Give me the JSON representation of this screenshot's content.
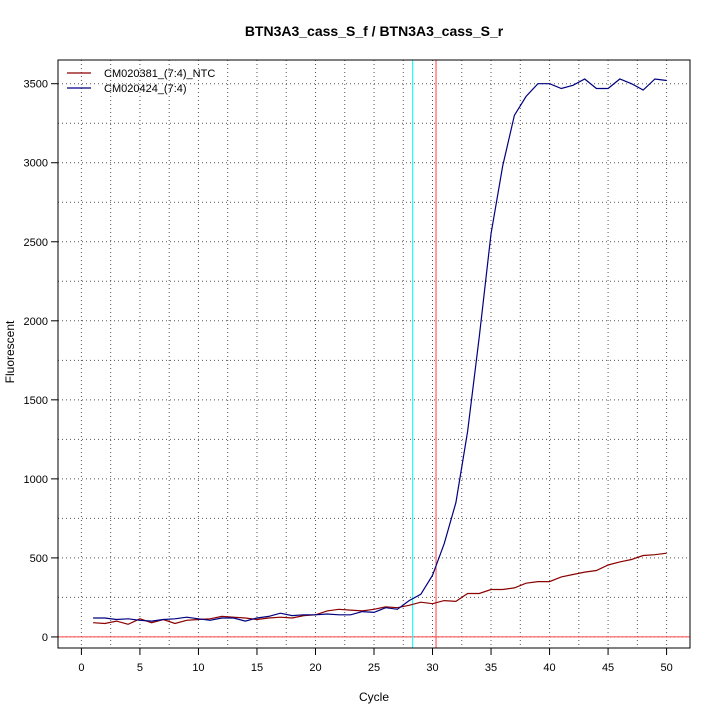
{
  "chart_data": {
    "type": "line",
    "title": "BTN3A3_cass_S_f / BTN3A3_cass_S_r",
    "xlabel": "Cycle",
    "ylabel": "Fluorescent",
    "xlim": [
      -2,
      52
    ],
    "ylim": [
      -70,
      3650
    ],
    "x_ticks": [
      0,
      5,
      10,
      15,
      20,
      25,
      30,
      35,
      40,
      45,
      50
    ],
    "y_ticks": [
      0,
      500,
      1000,
      1500,
      2000,
      2500,
      3000,
      3500
    ],
    "grid": true,
    "legend_position": "top-left",
    "x": [
      1,
      2,
      3,
      4,
      5,
      6,
      7,
      8,
      9,
      10,
      11,
      12,
      13,
      14,
      15,
      16,
      17,
      18,
      19,
      20,
      21,
      22,
      23,
      24,
      25,
      26,
      27,
      28,
      29,
      30,
      31,
      32,
      33,
      34,
      35,
      36,
      37,
      38,
      39,
      40,
      41,
      42,
      43,
      44,
      45,
      46,
      47,
      48,
      49,
      50
    ],
    "series": [
      {
        "name": "CM020381_(7:4)_NTC",
        "color": "#8b0000",
        "values": [
          90,
          85,
          100,
          80,
          115,
          90,
          110,
          85,
          105,
          110,
          115,
          130,
          125,
          120,
          110,
          120,
          125,
          120,
          135,
          140,
          165,
          175,
          170,
          165,
          175,
          190,
          185,
          200,
          220,
          210,
          230,
          225,
          275,
          275,
          300,
          300,
          310,
          340,
          350,
          350,
          380,
          395,
          410,
          420,
          455,
          475,
          490,
          515,
          520,
          530
        ]
      },
      {
        "name": "CM020424_(7:4)",
        "color": "#000080",
        "values": [
          120,
          120,
          110,
          115,
          105,
          100,
          110,
          115,
          125,
          115,
          105,
          120,
          120,
          100,
          120,
          130,
          150,
          135,
          140,
          140,
          145,
          140,
          140,
          160,
          155,
          185,
          175,
          230,
          270,
          390,
          590,
          850,
          1300,
          1900,
          2550,
          2980,
          3300,
          3420,
          3500,
          3500,
          3470,
          3490,
          3530,
          3470,
          3470,
          3530,
          3500,
          3460,
          3530,
          3520
        ]
      }
    ],
    "vertical_lines": [
      {
        "x": 28.3,
        "color": "#00ffff"
      },
      {
        "x": 30.3,
        "color": "#ff4040"
      }
    ],
    "horizontal_lines": [
      {
        "y": 0,
        "color": "#ff4040"
      }
    ]
  }
}
